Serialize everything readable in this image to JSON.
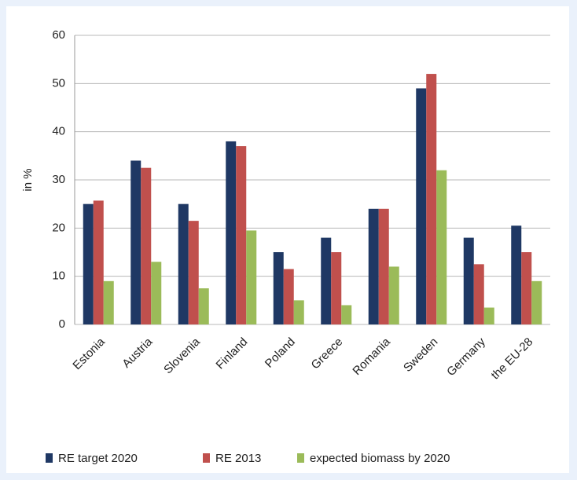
{
  "chart_data": {
    "type": "bar",
    "ylabel": "in %",
    "categories": [
      "Estonia",
      "Austria",
      "Slovenia",
      "Finland",
      "Poland",
      "Greece",
      "Romania",
      "Sweden",
      "Germany",
      "the EU-28"
    ],
    "series": [
      {
        "name": "RE target 2020",
        "color": "#1f3864",
        "values": [
          25,
          34,
          25,
          38,
          15,
          18,
          24,
          49,
          18,
          20.5
        ]
      },
      {
        "name": "RE 2013",
        "color": "#c0504d",
        "values": [
          25.7,
          32.5,
          21.5,
          37,
          11.5,
          15,
          24,
          52,
          12.5,
          15
        ]
      },
      {
        "name": "expected biomass by 2020",
        "color": "#9bbb59",
        "values": [
          9,
          13,
          7.5,
          19.5,
          5,
          4,
          12,
          32,
          3.5,
          9
        ]
      }
    ],
    "ylim": [
      0,
      60
    ],
    "yticks": [
      0,
      10,
      20,
      30,
      40,
      50,
      60
    ],
    "grid": true,
    "legend": "bottom"
  }
}
